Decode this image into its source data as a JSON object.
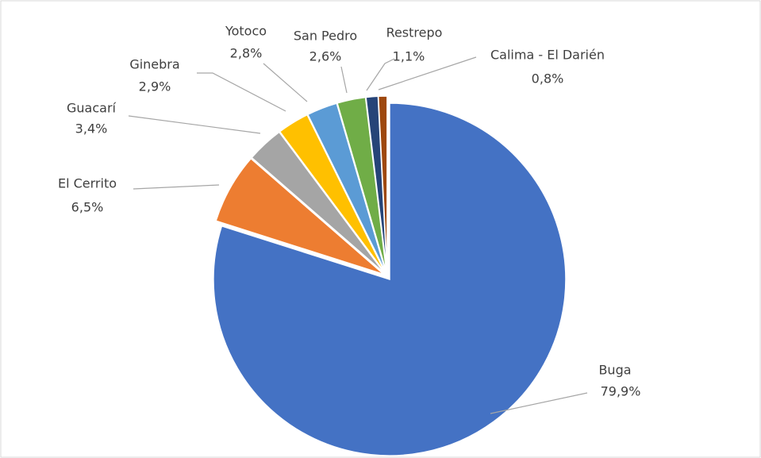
{
  "chart_data": {
    "type": "pie",
    "categories": [
      "Buga",
      "El Cerrito",
      "Guacarí",
      "Ginebra",
      "Yotoco",
      "San Pedro",
      "Restrepo",
      "Calima - El Darién"
    ],
    "values": [
      79.9,
      6.5,
      3.4,
      2.9,
      2.8,
      2.6,
      1.1,
      0.8
    ],
    "value_labels": [
      "79,9%",
      "6,5%",
      "3,4%",
      "2,9%",
      "2,8%",
      "2,6%",
      "1,1%",
      "0,8%"
    ],
    "colors": [
      "#4472c4",
      "#ed7d31",
      "#a5a5a5",
      "#ffc000",
      "#5b9bd5",
      "#70ad47",
      "#264478",
      "#9e480e"
    ]
  }
}
